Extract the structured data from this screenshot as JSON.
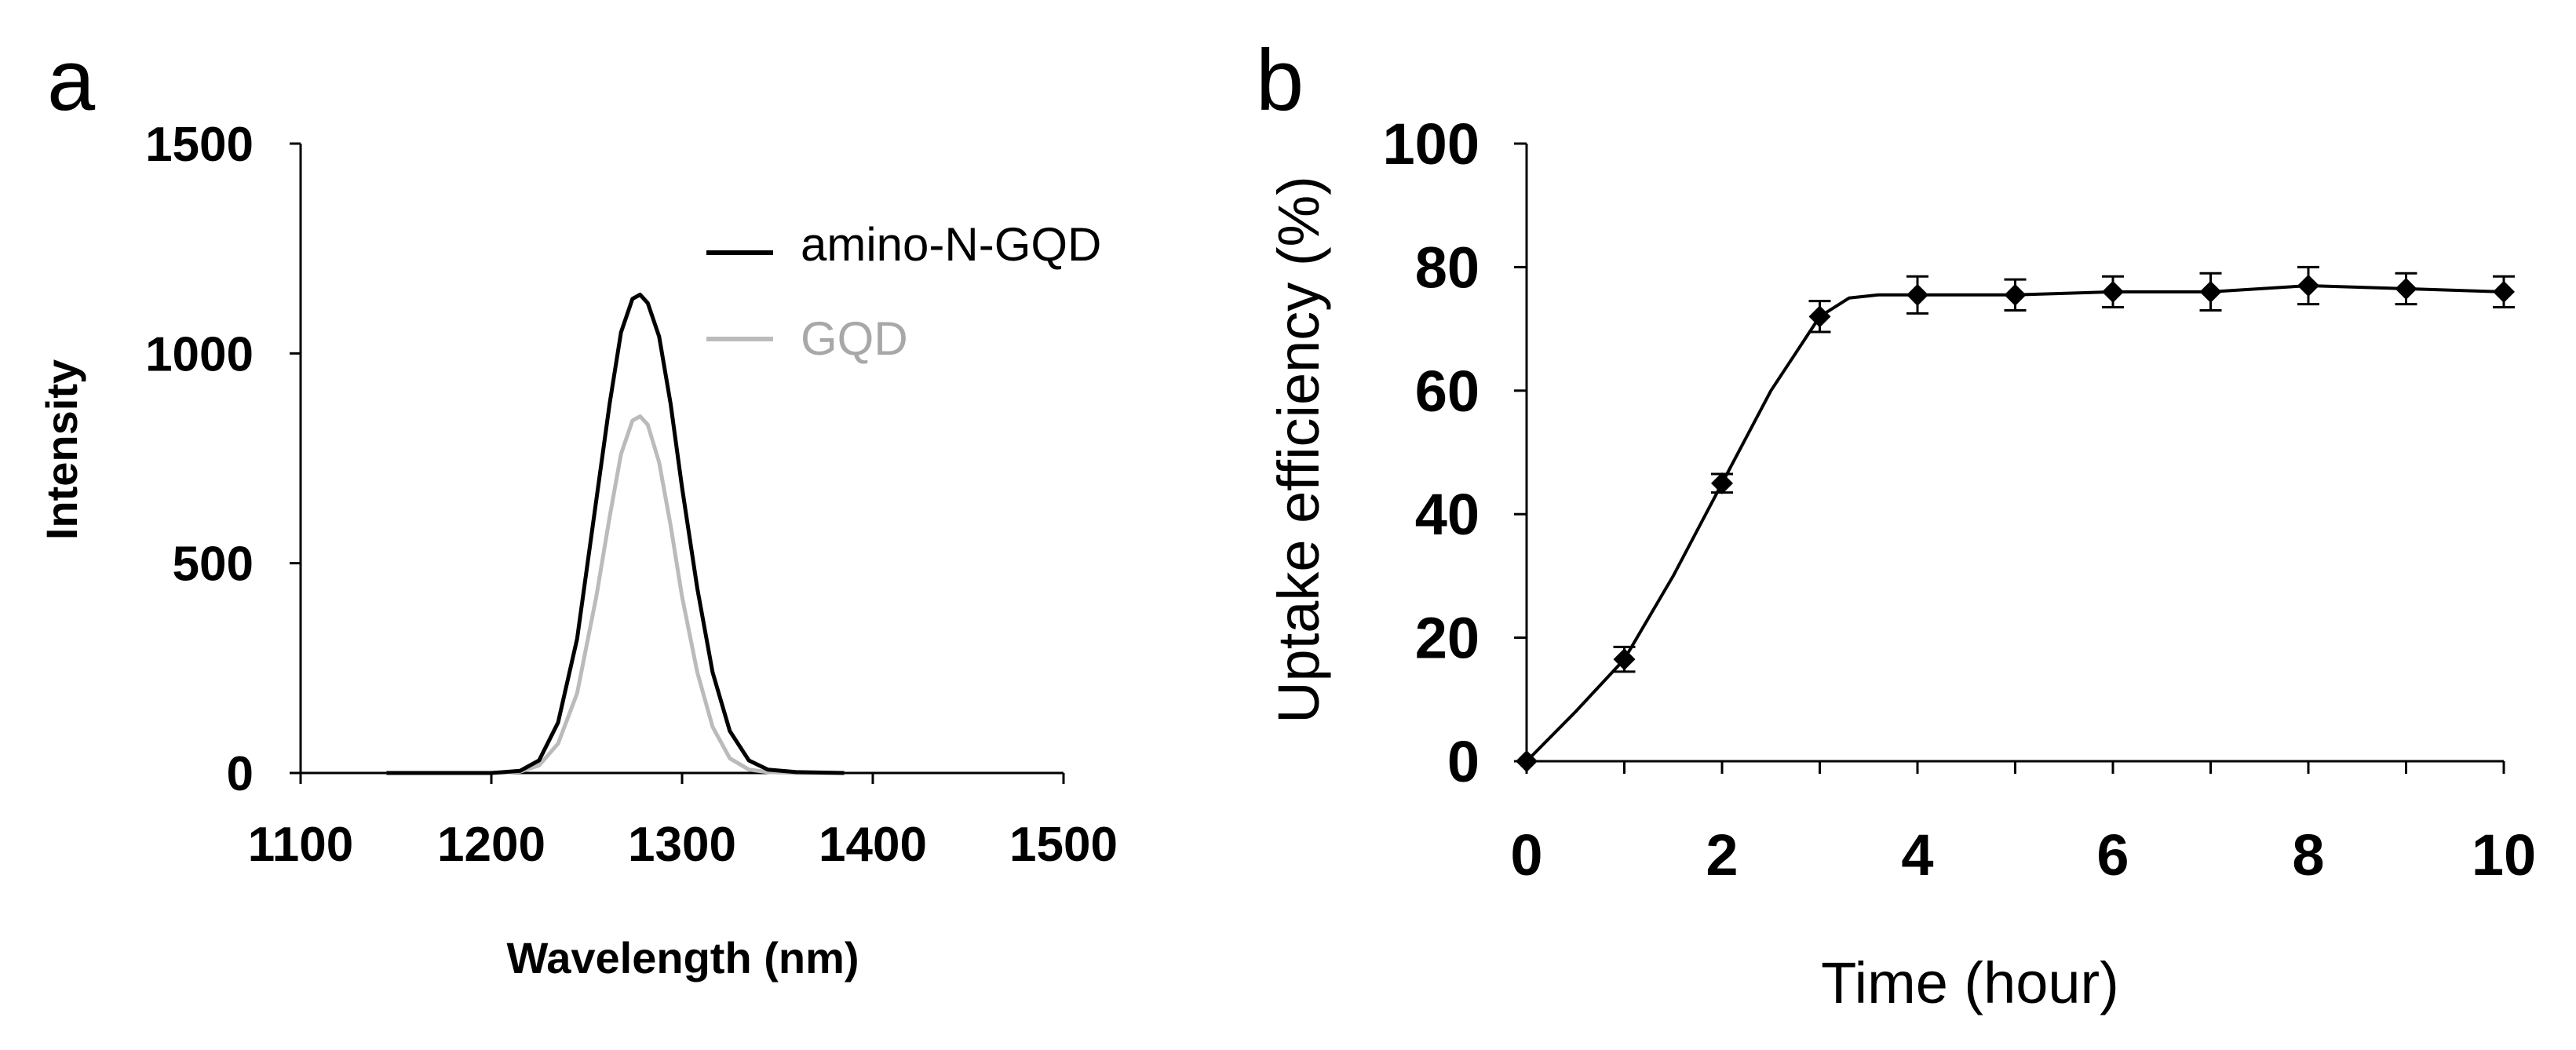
{
  "chart_data": [
    {
      "panel_label": "a",
      "type": "line",
      "title": "",
      "xlabel": "Wavelength (nm)",
      "ylabel": "Intensity",
      "xlim": [
        1100,
        1500
      ],
      "ylim": [
        0,
        1500
      ],
      "xticks": [
        "1100",
        "1200",
        "1300",
        "1400",
        "1500"
      ],
      "yticks": [
        "0",
        "500",
        "1000",
        "1500"
      ],
      "legend_position": "top-right",
      "series": [
        {
          "name": "amino-N-GQD",
          "color": "#000000",
          "x": [
            1145,
            1200,
            1215,
            1225,
            1235,
            1245,
            1255,
            1262,
            1268,
            1274,
            1278,
            1282,
            1288,
            1294,
            1300,
            1308,
            1316,
            1325,
            1335,
            1345,
            1360,
            1385
          ],
          "y": [
            0,
            0,
            5,
            30,
            120,
            320,
            650,
            880,
            1050,
            1130,
            1140,
            1120,
            1040,
            880,
            680,
            440,
            240,
            100,
            30,
            8,
            2,
            0
          ]
        },
        {
          "name": "GQD",
          "color": "#bbbbbb",
          "x": [
            1145,
            1200,
            1215,
            1225,
            1235,
            1245,
            1255,
            1262,
            1268,
            1274,
            1278,
            1282,
            1288,
            1294,
            1300,
            1308,
            1316,
            1325,
            1335,
            1345,
            1360,
            1385
          ],
          "y": [
            0,
            0,
            3,
            18,
            70,
            190,
            420,
            610,
            760,
            840,
            850,
            830,
            740,
            590,
            420,
            240,
            110,
            35,
            8,
            2,
            0,
            0
          ]
        }
      ]
    },
    {
      "panel_label": "b",
      "type": "line",
      "title": "",
      "xlabel": "Time (hour)",
      "ylabel": "Uptake efficiency (%)",
      "xlim": [
        0,
        10
      ],
      "ylim": [
        0,
        100
      ],
      "xticks": [
        "0",
        "2",
        "4",
        "6",
        "8",
        "10"
      ],
      "yticks": [
        "0",
        "20",
        "40",
        "60",
        "80",
        "100"
      ],
      "series": [
        {
          "name": "Uptake efficiency",
          "color": "#000000",
          "marker": "diamond",
          "x": [
            0,
            1,
            2,
            3,
            4,
            5,
            6,
            7,
            8,
            9,
            10
          ],
          "y": [
            0,
            16.5,
            45,
            72,
            75.5,
            75.5,
            76,
            76,
            77,
            76.5,
            76
          ],
          "error": [
            0,
            2,
            1.5,
            2.5,
            3,
            2.5,
            2.5,
            3,
            3,
            2.5,
            2.5
          ]
        }
      ],
      "fit_curve": {
        "x": [
          0,
          0.5,
          1,
          1.5,
          2,
          2.5,
          3,
          3.3,
          3.6,
          4,
          5,
          6,
          7,
          8,
          9,
          10
        ],
        "y": [
          0,
          8,
          16.5,
          30,
          45,
          60,
          72,
          75,
          75.5,
          75.5,
          75.5,
          76,
          76,
          77,
          76.5,
          76
        ]
      }
    }
  ]
}
